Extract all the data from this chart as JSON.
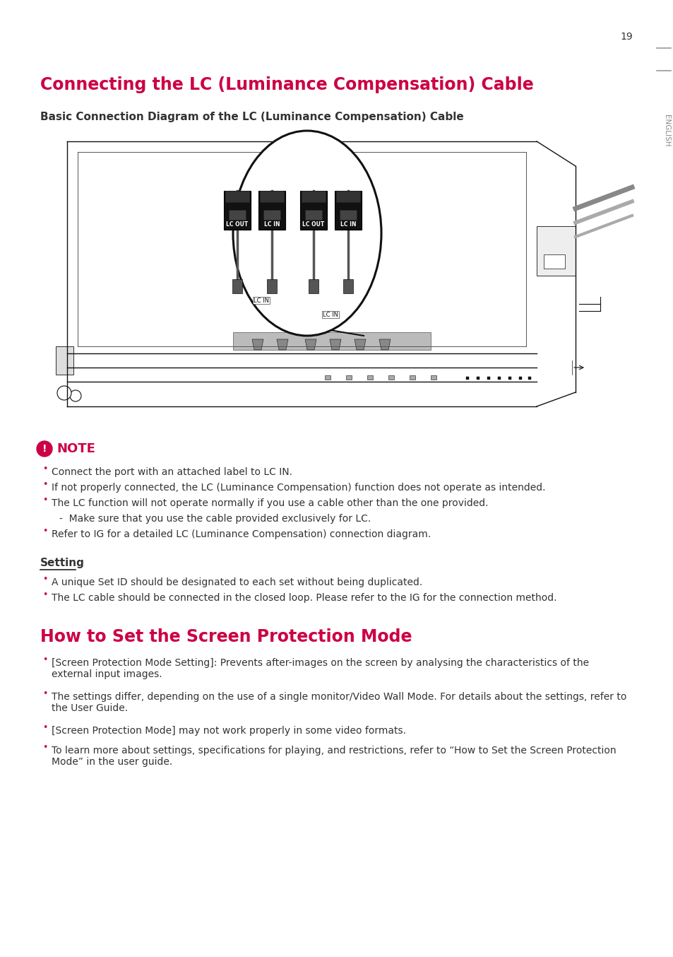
{
  "page_number": "19",
  "bg_color": "#ffffff",
  "title1": "Connecting the LC (Luminance Compensation) Cable",
  "title1_color": "#cc0044",
  "subtitle1": "Basic Connection Diagram of the LC (Luminance Compensation) Cable",
  "note_title": "NOTE",
  "note_color": "#cc0044",
  "note_items": [
    "Connect the port with an attached label to LC IN.",
    "If not properly connected, the LC (Luminance Compensation) function does not operate as intended.",
    "The LC function will not operate normally if you use a cable other than the one provided.",
    "  -  Make sure that you use the cable provided exclusively for LC.",
    "Refer to IG for a detailed LC (Luminance Compensation) connection diagram."
  ],
  "setting_title": "Setting",
  "setting_items": [
    "A unique Set ID should be designated to each set without being duplicated.",
    "The LC cable should be connected in the closed loop. Please refer to the IG for the connection method."
  ],
  "title2": "How to Set the Screen Protection Mode",
  "title2_color": "#cc0044",
  "protection_items": [
    "[Screen Protection Mode Setting]: Prevents after-images on the screen by analysing the characteristics of the\nexternal input images.",
    "The settings differ, depending on the use of a single monitor/Video Wall Mode. For details about the settings, refer to\nthe User Guide.",
    "[Screen Protection Mode] may not work properly in some video formats.",
    "To learn more about settings, specifications for playing, and restrictions, refer to “How to Set the Screen Protection\nMode” in the user guide."
  ],
  "english_label": "ENGLISH",
  "text_color": "#333333",
  "bullet_color": "#cc0044",
  "dark": "#111111",
  "mid": "#555555",
  "light": "#888888"
}
